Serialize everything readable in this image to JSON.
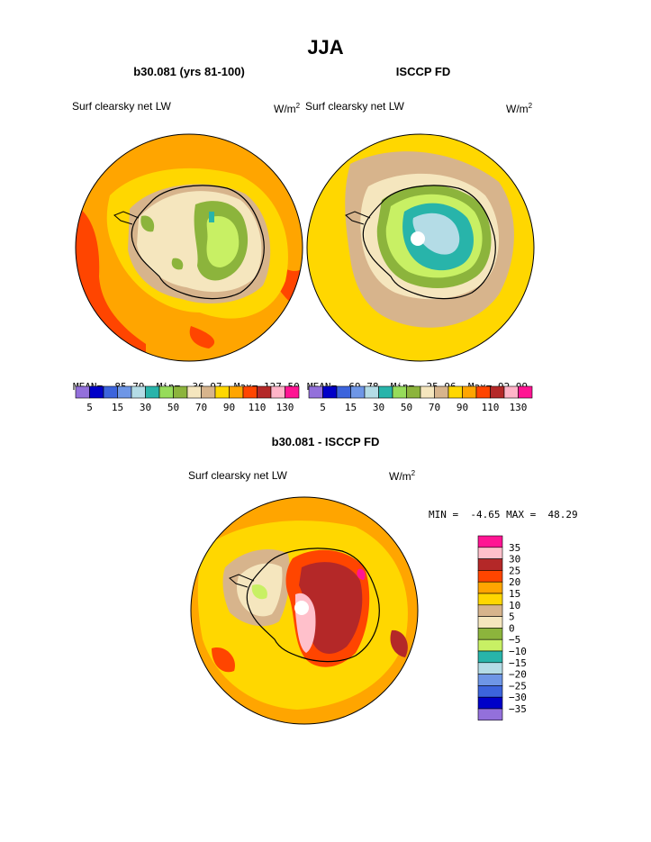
{
  "page": {
    "title": "JJA",
    "panels": [
      {
        "subtitle": "b30.081 (yrs 81-100)",
        "variable": "Surf clearsky net LW",
        "units": "W/m",
        "units_sup": "2",
        "stats": {
          "mean_label": "MEAN=",
          "mean": "85.79",
          "min_label": "Min=",
          "min": "36.97",
          "max_label": "Max=",
          "max": "127.50"
        }
      },
      {
        "subtitle": "ISCCP FD",
        "variable": "Surf clearsky net LW",
        "units": "W/m",
        "units_sup": "2",
        "stats": {
          "mean_label": "MEAN=",
          "mean": "69.78",
          "min_label": "Min=",
          "min": "25.96",
          "max_label": "Max=",
          "max": "92.99"
        }
      }
    ],
    "diff_panel": {
      "subtitle": "b30.081 - ISCCP FD",
      "variable": "Surf clearsky net LW",
      "units": "W/m",
      "units_sup": "2",
      "stats": {
        "min_label": "MIN =",
        "min": "-4.65",
        "max_label": "MAX =",
        "max": "48.29"
      }
    }
  },
  "colorbar_abs": {
    "colors": [
      "#9370db",
      "#0000c8",
      "#3c64dc",
      "#6e96e6",
      "#b4dce6",
      "#28b4aa",
      "#96dc5a",
      "#8cb43c",
      "#f5e6be",
      "#d7b48c",
      "#ffd700",
      "#ffa500",
      "#ff4500",
      "#b42828",
      "#ffb4c8",
      "#ff1493"
    ],
    "tick_labels": [
      "5",
      "15",
      "30",
      "50",
      "70",
      "90",
      "110",
      "130"
    ]
  },
  "colorbar_diff": {
    "colors_top_to_bottom": [
      "#ff1493",
      "#ffc0cb",
      "#b42828",
      "#ff4500",
      "#ffa500",
      "#ffd700",
      "#d7b48c",
      "#f5e6be",
      "#8cb43c",
      "#c8f064",
      "#28b4aa",
      "#b4dce6",
      "#6e96e6",
      "#3c64dc",
      "#0000c8",
      "#9370db"
    ],
    "tick_labels_top_to_bottom": [
      "35",
      "30",
      "25",
      "20",
      "15",
      "10",
      "5",
      "0",
      "−5",
      "−10",
      "−15",
      "−20",
      "−25",
      "−30",
      "−35"
    ]
  }
}
